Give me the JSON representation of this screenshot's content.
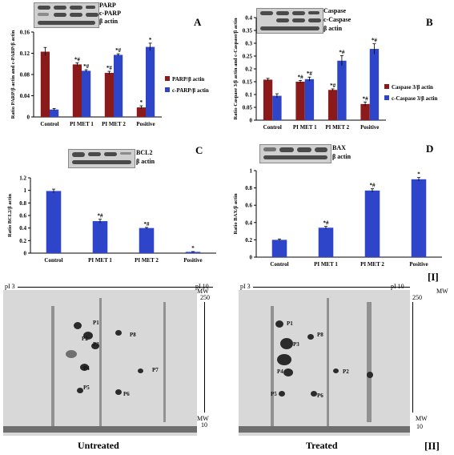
{
  "section_labels": {
    "part1": "[I]",
    "part2": "[II]"
  },
  "chart_data": [
    {
      "id": "A",
      "type": "bar",
      "letter": "A",
      "blot_labels": [
        "PARP",
        "c-PARP",
        "β actin"
      ],
      "categories": [
        "Control",
        "PI MET 1",
        "PI MET 2",
        "Positive"
      ],
      "ylabel": "Ratio PARP/β actin and c-PARP/β actin",
      "ylim": [
        0,
        0.16
      ],
      "yticks": [
        "0",
        "0.04",
        "0.08",
        "0.12",
        "0.16"
      ],
      "ytick_values": [
        0,
        0.04,
        0.08,
        0.12,
        0.16
      ],
      "series": [
        {
          "name": "PARP/β actin",
          "color": "#8b1a1a",
          "values": [
            0.123,
            0.099,
            0.083,
            0.018
          ],
          "errors": [
            0.008,
            0.003,
            0.003,
            0.003
          ],
          "marks": [
            "",
            "*#",
            "*#",
            "*"
          ]
        },
        {
          "name": "c-PARP/β actin",
          "color": "#2e45c9",
          "values": [
            0.014,
            0.087,
            0.117,
            0.132
          ],
          "errors": [
            0.002,
            0.002,
            0.002,
            0.007
          ],
          "marks": [
            "",
            "*#",
            "*#",
            "*"
          ]
        }
      ],
      "legend": "right"
    },
    {
      "id": "B",
      "type": "bar",
      "letter": "B",
      "blot_labels": [
        "Caspase",
        "c-Caspase",
        "β actin"
      ],
      "categories": [
        "Control",
        "PI MET 1",
        "PI MET 2",
        "Positive"
      ],
      "ylabel": "Ratio Caspase 3/β actin and c-Caspase/β actin",
      "ylim": [
        0,
        0.4
      ],
      "yticks": [
        "0",
        "0.05",
        "0.1",
        "0.15",
        "0.2",
        "0.25",
        "0.3",
        "0.35",
        "0.4"
      ],
      "ytick_values": [
        0,
        0.05,
        0.1,
        0.15,
        0.2,
        0.25,
        0.3,
        0.35,
        0.4
      ],
      "series": [
        {
          "name": "Caspase 3/β actin",
          "color": "#8b1a1a",
          "values": [
            0.158,
            0.15,
            0.118,
            0.063
          ],
          "errors": [
            0.005,
            0.005,
            0.004,
            0.008
          ],
          "marks": [
            "",
            "*#",
            "*#",
            "*#"
          ]
        },
        {
          "name": "c-Caspase 3/β actin",
          "color": "#2e45c9",
          "values": [
            0.095,
            0.16,
            0.232,
            0.278
          ],
          "errors": [
            0.008,
            0.008,
            0.02,
            0.02
          ],
          "marks": [
            "",
            "*#",
            "*#",
            "*#"
          ]
        }
      ],
      "legend": "right"
    },
    {
      "id": "C",
      "type": "bar",
      "letter": "C",
      "blot_labels": [
        "BCL2",
        "β actin"
      ],
      "categories": [
        "Control",
        "PI MET 1",
        "PI MET 2",
        "Positive"
      ],
      "ylabel": "Ratio BCL2/β actin",
      "ylim": [
        0,
        1.2
      ],
      "yticks": [
        "0",
        "0.2",
        "0.4",
        "0.6",
        "0.8",
        "1",
        "1.2"
      ],
      "ytick_values": [
        0,
        0.2,
        0.4,
        0.6,
        0.8,
        1,
        1.2
      ],
      "series": [
        {
          "name": "",
          "color": "#2e45c9",
          "values": [
            0.99,
            0.51,
            0.4,
            0.02
          ],
          "errors": [
            0.03,
            0.03,
            0.01,
            0.005
          ],
          "marks": [
            "",
            "*#",
            "*#",
            "*"
          ]
        }
      ]
    },
    {
      "id": "D",
      "type": "bar",
      "letter": "D",
      "blot_labels": [
        "BAX",
        "β actin"
      ],
      "categories": [
        "Control",
        "PI MET 1",
        "PI MET 2",
        "Positive"
      ],
      "ylabel": "Ratio BAX/β actin",
      "ylim": [
        0,
        1
      ],
      "yticks": [
        "0",
        "0.2",
        "0.4",
        "0.6",
        "0.8",
        "1"
      ],
      "ytick_values": [
        0,
        0.2,
        0.4,
        0.6,
        0.8,
        1
      ],
      "series": [
        {
          "name": "",
          "color": "#2e45c9",
          "values": [
            0.2,
            0.34,
            0.77,
            0.9
          ],
          "errors": [
            0.01,
            0.015,
            0.02,
            0.02
          ],
          "marks": [
            "",
            "*#",
            "*#",
            "*"
          ]
        }
      ]
    }
  ],
  "gels": [
    {
      "caption": "Untreated",
      "ph_left": "pI 3",
      "ph_right": "pI 10",
      "spots": [
        "P1",
        "P2",
        "P3",
        "P4",
        "P5",
        "P6",
        "P7",
        "P8"
      ]
    },
    {
      "caption": "Treated",
      "ph_left": "pI 3",
      "ph_right": "pI 10",
      "spots": [
        "P1",
        "P2",
        "P3",
        "P4",
        "P5",
        "P6",
        "P8"
      ]
    }
  ],
  "mw": {
    "top_label": "MW",
    "top_value": "250",
    "bottom_label": "MW",
    "bottom_value": "10"
  }
}
